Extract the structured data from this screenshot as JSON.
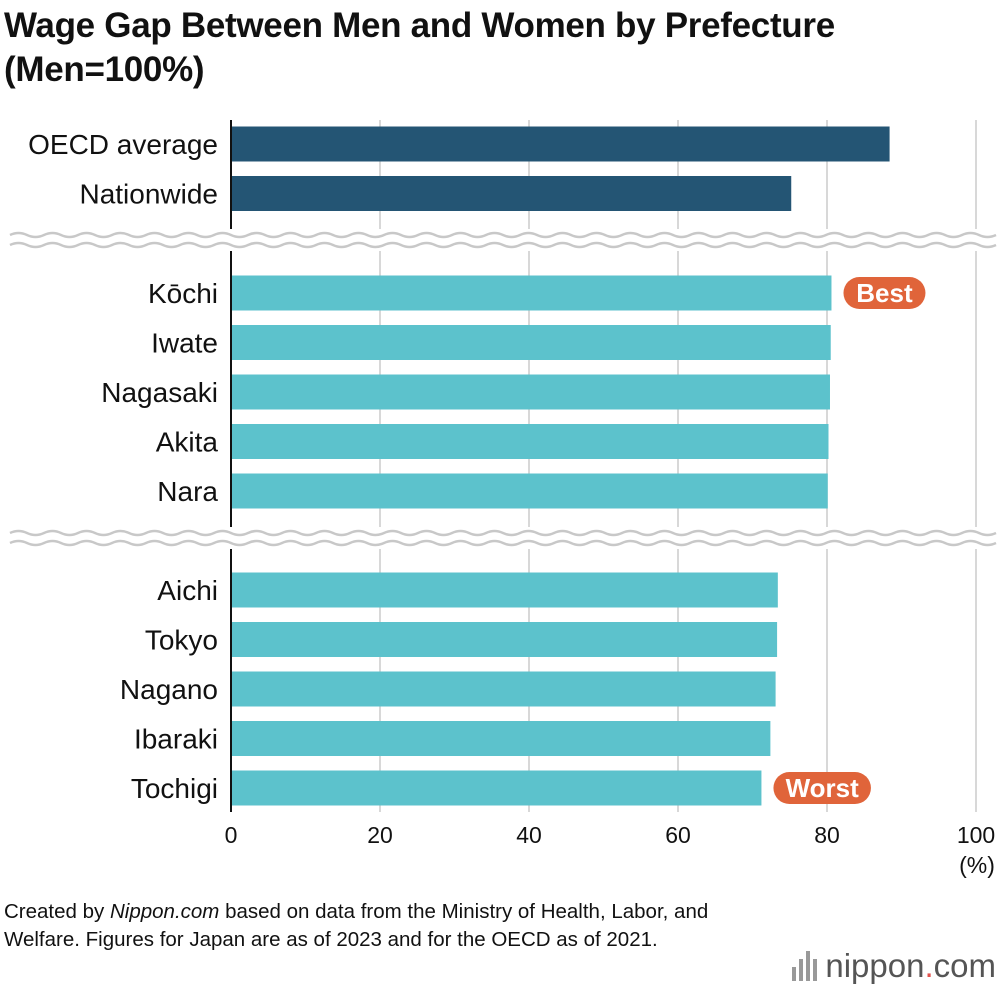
{
  "title_line1": "Wage Gap Between Men and Women by Prefecture",
  "title_line2": "(Men=100%)",
  "source": {
    "prefix": "Created by ",
    "italic": "Nippon.com",
    "rest": " based on data from the Ministry of Health, Labor, and Welfare. Figures for Japan are as of 2023 and for the OECD as of 2021."
  },
  "logo": {
    "word": "nippon",
    "dot": ".",
    "suffix": "com"
  },
  "colors": {
    "dark_bar": "#245574",
    "light_bar": "#5cc2cc",
    "badge": "#e0643a",
    "grid": "#cccccc",
    "axis": "#111111"
  },
  "chart_data": {
    "type": "bar",
    "orientation": "horizontal",
    "xlim": [
      0,
      100
    ],
    "x_ticks": [
      0,
      20,
      40,
      60,
      80,
      100
    ],
    "x_unit": "(%)",
    "grid": true,
    "groups": [
      {
        "categories": [
          "OECD average",
          "Nationwide"
        ],
        "values": [
          88.4,
          75.2
        ],
        "color": "#245574"
      },
      {
        "categories": [
          "Kōchi",
          "Iwate",
          "Nagasaki",
          "Akita",
          "Nara"
        ],
        "values": [
          80.6,
          80.5,
          80.4,
          80.2,
          80.1
        ],
        "color": "#5cc2cc"
      },
      {
        "categories": [
          "Aichi",
          "Tokyo",
          "Nagano",
          "Ibaraki",
          "Tochigi"
        ],
        "values": [
          73.4,
          73.3,
          73.1,
          72.4,
          71.2
        ],
        "color": "#5cc2cc"
      }
    ],
    "annotations": [
      {
        "category": "Kōchi",
        "text": "Best"
      },
      {
        "category": "Tochigi",
        "text": "Worst"
      }
    ]
  }
}
